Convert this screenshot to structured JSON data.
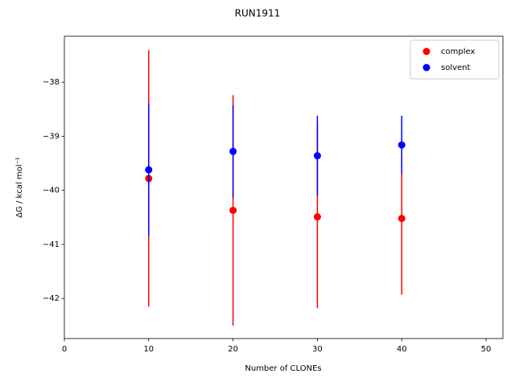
{
  "chart_data": {
    "type": "scatter",
    "title": "RUN1911",
    "xlabel": "Number of CLONEs",
    "ylabel": "ΔG / kcal mol⁻¹",
    "xlim": [
      0,
      52
    ],
    "ylim": [
      -42.74,
      -37.15
    ],
    "xticks": [
      0,
      10,
      20,
      30,
      40,
      50
    ],
    "yticks": [
      {
        "value": -42,
        "label": "−42"
      },
      {
        "value": -41,
        "label": "−41"
      },
      {
        "value": -40,
        "label": "−40"
      },
      {
        "value": -39,
        "label": "−39"
      },
      {
        "value": -38,
        "label": "−38"
      }
    ],
    "legend": "upper right",
    "series": [
      {
        "name": "complex",
        "color": "#ff0000",
        "x": [
          10,
          20,
          30,
          40
        ],
        "values": [
          -39.78,
          -40.37,
          -40.49,
          -40.52
        ],
        "errors": [
          2.37,
          2.13,
          1.69,
          1.41
        ]
      },
      {
        "name": "solvent",
        "color": "#0000ff",
        "x": [
          10,
          20,
          30,
          40
        ],
        "values": [
          -39.62,
          -39.28,
          -39.36,
          -39.16
        ],
        "errors": [
          1.23,
          0.85,
          0.74,
          0.54
        ]
      }
    ]
  }
}
